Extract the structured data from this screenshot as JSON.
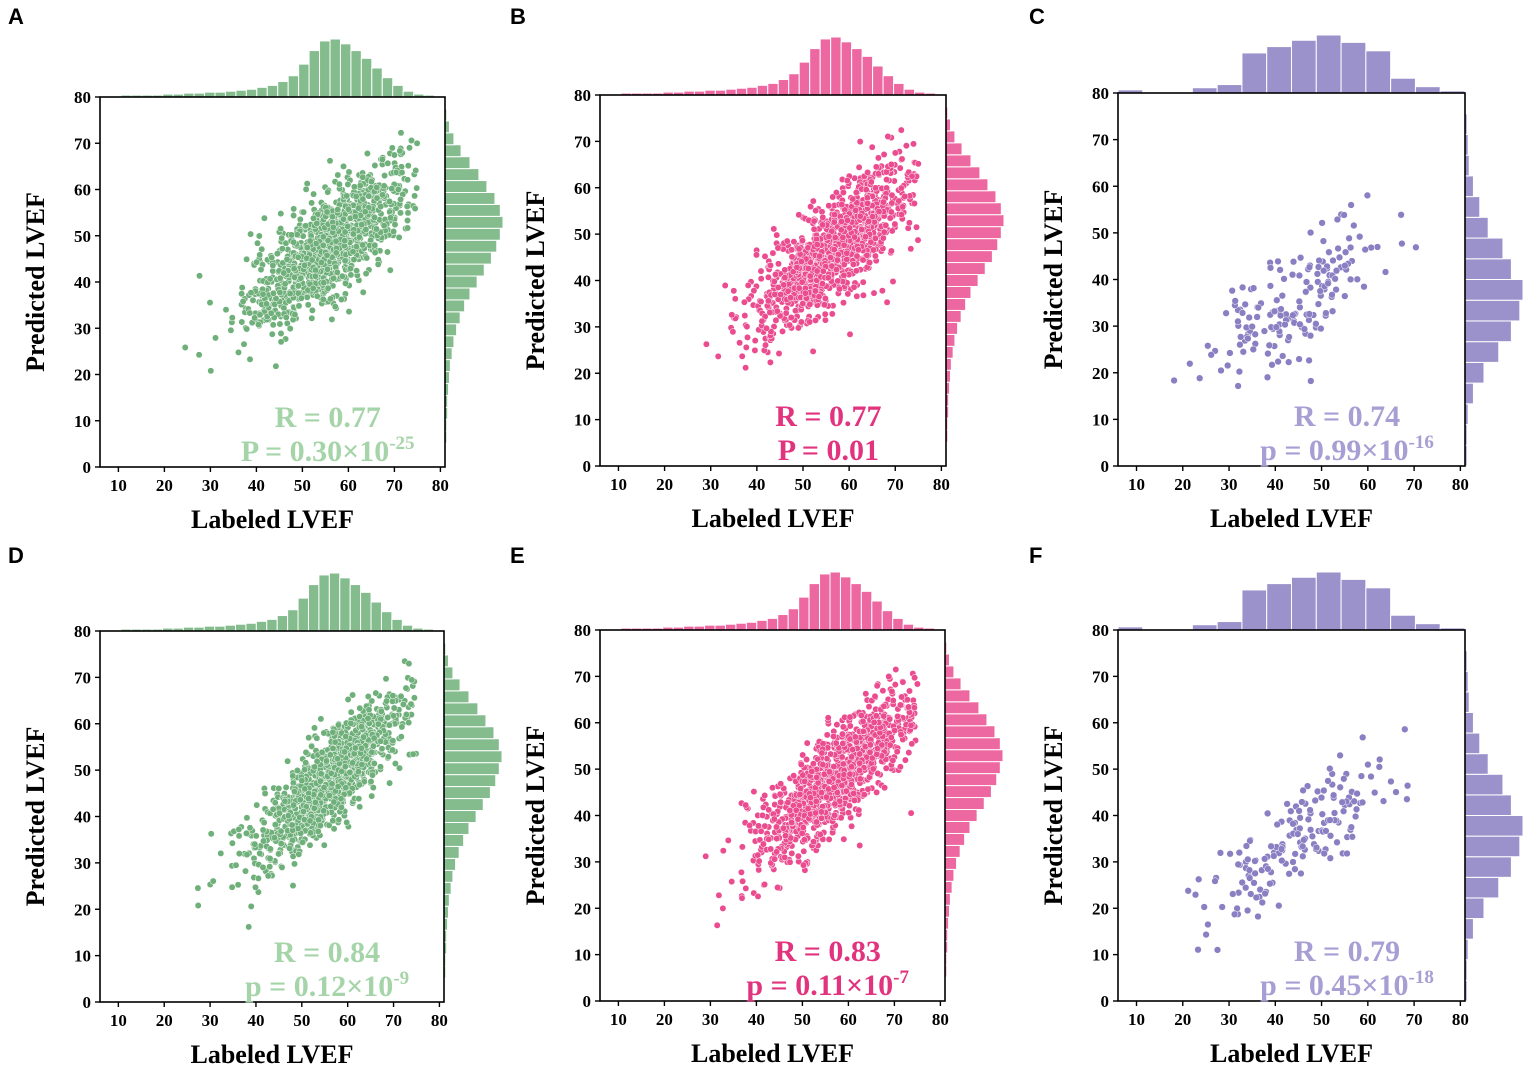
{
  "figure": {
    "colors": {
      "A": "#6fb07a",
      "B": "#ea4c8f",
      "C": "#8a7fc2",
      "D": "#6fb07a",
      "E": "#ea4c8f",
      "F": "#8a7fc2"
    },
    "stat_colors": {
      "A": "#a6d4a9",
      "B": "#e2337e",
      "C": "#a79ed4",
      "D": "#a6d4a9",
      "E": "#e2337e",
      "F": "#a79ed4"
    }
  },
  "chart_data": [
    {
      "panel": "A",
      "type": "scatter",
      "xlabel": "Labeled LVEF",
      "ylabel": "Predicted LVEF",
      "xlim": [
        6,
        81
      ],
      "ylim": [
        0,
        80
      ],
      "xticks": [
        "10",
        "20",
        "30",
        "40",
        "50",
        "60",
        "70",
        "80"
      ],
      "yticks": [
        "0",
        "10",
        "20",
        "30",
        "40",
        "50",
        "60",
        "70",
        "80"
      ],
      "stat_r": "R = 0.77",
      "stat_p_base": "P = 0.30×10",
      "stat_p_exp": "-25",
      "n_points": 1100,
      "mean": [
        56,
        48
      ],
      "sd": [
        9,
        9
      ],
      "corr": 0.77,
      "hist_x": [
        1,
        1,
        2,
        2,
        2,
        2,
        3,
        3,
        4,
        4,
        5,
        5,
        6,
        7,
        8,
        10,
        12,
        16,
        22,
        34,
        48,
        58,
        60,
        55,
        48,
        40,
        30,
        20,
        12,
        6,
        3,
        2,
        1
      ],
      "hist_y": [
        1,
        1,
        2,
        2,
        3,
        3,
        4,
        5,
        6,
        8,
        10,
        13,
        17,
        22,
        28,
        36,
        44,
        52,
        58,
        62,
        65,
        62,
        56,
        47,
        38,
        28,
        18,
        10,
        5,
        2,
        1
      ]
    },
    {
      "panel": "B",
      "type": "scatter",
      "xlabel": "Labeled LVEF",
      "ylabel": "Predicted LVEF",
      "xlim": [
        6,
        81
      ],
      "ylim": [
        0,
        80
      ],
      "xticks": [
        "10",
        "20",
        "30",
        "40",
        "50",
        "60",
        "70",
        "80"
      ],
      "yticks": [
        "0",
        "10",
        "20",
        "30",
        "40",
        "50",
        "60",
        "70",
        "80"
      ],
      "stat_r": "R = 0.77",
      "stat_p_base": "P = 0.01",
      "stat_p_exp": "",
      "n_points": 1100,
      "mean": [
        57,
        47
      ],
      "sd": [
        9,
        9
      ],
      "corr": 0.77,
      "hist_x": [
        1,
        1,
        2,
        2,
        2,
        2,
        3,
        3,
        4,
        4,
        5,
        5,
        6,
        7,
        8,
        10,
        12,
        16,
        22,
        34,
        48,
        58,
        60,
        55,
        48,
        40,
        30,
        20,
        12,
        6,
        3,
        2,
        1
      ],
      "hist_y": [
        1,
        1,
        2,
        2,
        3,
        3,
        4,
        5,
        6,
        8,
        10,
        13,
        17,
        22,
        28,
        36,
        44,
        52,
        58,
        62,
        65,
        62,
        56,
        47,
        38,
        28,
        18,
        10,
        5,
        2,
        1
      ]
    },
    {
      "panel": "C",
      "type": "scatter",
      "xlabel": "Labeled LVEF",
      "ylabel": "Predicted LVEF",
      "xlim": [
        6,
        81
      ],
      "ylim": [
        0,
        80
      ],
      "xticks": [
        "10",
        "20",
        "30",
        "40",
        "50",
        "60",
        "70",
        "80"
      ],
      "yticks": [
        "0",
        "10",
        "20",
        "30",
        "40",
        "50",
        "60",
        "70",
        "80"
      ],
      "stat_r": "R = 0.74",
      "stat_p_base": "p = 0.99×10",
      "stat_p_exp": "-16",
      "n_points": 170,
      "mean": [
        45,
        36
      ],
      "sd": [
        10,
        9
      ],
      "corr": 0.74,
      "hist_x": [
        3,
        1,
        1,
        5,
        8,
        38,
        44,
        50,
        55,
        48,
        40,
        14,
        6,
        2
      ],
      "hist_y": [
        2,
        2,
        3,
        8,
        18,
        32,
        44,
        52,
        55,
        44,
        36,
        22,
        14,
        8,
        4,
        3,
        2,
        1
      ]
    },
    {
      "panel": "D",
      "type": "scatter",
      "xlabel": "Labeled LVEF",
      "ylabel": "Predicted LVEF",
      "xlim": [
        6,
        81
      ],
      "ylim": [
        0,
        80
      ],
      "xticks": [
        "10",
        "20",
        "30",
        "40",
        "50",
        "60",
        "70",
        "80"
      ],
      "yticks": [
        "0",
        "10",
        "20",
        "30",
        "40",
        "50",
        "60",
        "70",
        "80"
      ],
      "stat_r": "R = 0.84",
      "stat_p_base": "p = 0.12×10",
      "stat_p_exp": "-9",
      "n_points": 1100,
      "mean": [
        56,
        48
      ],
      "sd": [
        9,
        9.5
      ],
      "corr": 0.84,
      "hist_x": [
        1,
        1,
        2,
        2,
        2,
        2,
        3,
        3,
        4,
        4,
        5,
        5,
        6,
        7,
        8,
        10,
        12,
        16,
        22,
        34,
        48,
        58,
        60,
        55,
        48,
        40,
        30,
        20,
        12,
        6,
        3,
        2,
        1
      ],
      "hist_y": [
        1,
        1,
        2,
        2,
        3,
        3,
        4,
        5,
        6,
        8,
        10,
        13,
        17,
        22,
        28,
        36,
        44,
        52,
        58,
        62,
        65,
        62,
        56,
        47,
        38,
        28,
        18,
        10,
        5,
        2,
        1
      ]
    },
    {
      "panel": "E",
      "type": "scatter",
      "xlabel": "Labeled LVEF",
      "ylabel": "Predicted LVEF",
      "xlim": [
        6,
        81
      ],
      "ylim": [
        0,
        80
      ],
      "xticks": [
        "10",
        "20",
        "30",
        "40",
        "50",
        "60",
        "70",
        "80"
      ],
      "yticks": [
        "0",
        "10",
        "20",
        "30",
        "40",
        "50",
        "60",
        "70",
        "80"
      ],
      "stat_r": "R = 0.83",
      "stat_p_base": "p = 0.11×10",
      "stat_p_exp": "-7",
      "n_points": 1100,
      "mean": [
        57,
        48
      ],
      "sd": [
        9,
        9.5
      ],
      "corr": 0.83,
      "hist_x": [
        1,
        1,
        2,
        2,
        2,
        2,
        3,
        3,
        4,
        4,
        5,
        5,
        6,
        7,
        8,
        10,
        12,
        16,
        22,
        34,
        48,
        58,
        60,
        55,
        48,
        40,
        30,
        20,
        12,
        6,
        3,
        2,
        1
      ],
      "hist_y": [
        1,
        1,
        2,
        2,
        3,
        3,
        4,
        5,
        6,
        8,
        10,
        13,
        17,
        22,
        28,
        36,
        44,
        52,
        58,
        62,
        65,
        62,
        56,
        47,
        38,
        28,
        18,
        10,
        5,
        2,
        1
      ]
    },
    {
      "panel": "F",
      "type": "scatter",
      "xlabel": "Labeled LVEF",
      "ylabel": "Predicted LVEF",
      "xlim": [
        6,
        81
      ],
      "ylim": [
        0,
        80
      ],
      "xticks": [
        "10",
        "20",
        "30",
        "40",
        "50",
        "60",
        "70",
        "80"
      ],
      "yticks": [
        "0",
        "10",
        "20",
        "30",
        "40",
        "50",
        "60",
        "70",
        "80"
      ],
      "stat_r": "R = 0.79",
      "stat_p_base": "p = 0.45×10",
      "stat_p_exp": "-18",
      "n_points": 170,
      "mean": [
        45,
        35
      ],
      "sd": [
        10,
        9.5
      ],
      "corr": 0.79,
      "hist_x": [
        3,
        1,
        1,
        5,
        8,
        38,
        44,
        50,
        55,
        48,
        40,
        14,
        6,
        2
      ],
      "hist_y": [
        2,
        2,
        3,
        8,
        18,
        32,
        44,
        52,
        55,
        44,
        36,
        22,
        14,
        8,
        4,
        3,
        2,
        1
      ]
    }
  ]
}
